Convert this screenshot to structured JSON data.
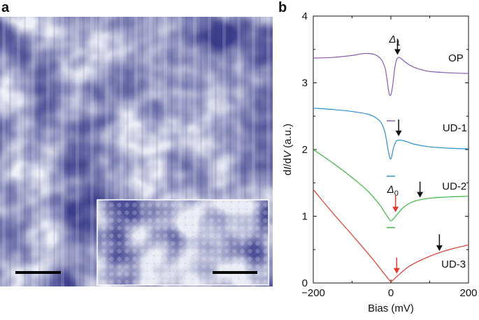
{
  "panels": {
    "a_label": "a",
    "b_label": "b"
  },
  "stm_image": {
    "description_colors": {
      "dark": "#3d3f8c",
      "light": "#f2f3f8"
    }
  },
  "chart_data": {
    "type": "line",
    "xlabel_prefix": "Bias (mV)",
    "ylabel_parts": [
      "d",
      "I",
      "/d",
      "V",
      " (a.u.)"
    ],
    "xlim": [
      -200,
      200
    ],
    "ylim": [
      0,
      4
    ],
    "x_ticks": [
      -200,
      0,
      200
    ],
    "x_tick_labels": [
      "−200",
      "0",
      "200"
    ],
    "y_ticks": [
      0,
      1,
      2,
      3,
      4
    ],
    "y_tick_labels": [
      "0",
      "1",
      "2",
      "3",
      "4"
    ],
    "grid": false,
    "series": [
      {
        "name": "OP",
        "color": "#8a5bb0",
        "x": [
          -200,
          -150,
          -100,
          -80,
          -60,
          -40,
          -25,
          -15,
          -10,
          -5,
          0,
          5,
          10,
          15,
          20,
          25,
          35,
          50,
          70,
          100,
          150,
          200
        ],
        "y": [
          3.37,
          3.38,
          3.41,
          3.43,
          3.44,
          3.42,
          3.35,
          3.22,
          3.05,
          2.85,
          2.82,
          2.98,
          3.22,
          3.35,
          3.38,
          3.37,
          3.32,
          3.26,
          3.21,
          3.17,
          3.15,
          3.14
        ]
      },
      {
        "name": "UD-1",
        "color": "#2a8fd0",
        "x": [
          -200,
          -150,
          -100,
          -60,
          -40,
          -25,
          -15,
          -8,
          -3,
          0,
          3,
          8,
          15,
          25,
          40,
          60,
          100,
          150,
          200
        ],
        "y": [
          2.62,
          2.6,
          2.57,
          2.53,
          2.48,
          2.4,
          2.25,
          2.02,
          1.88,
          1.86,
          1.92,
          2.05,
          2.13,
          2.14,
          2.12,
          2.08,
          2.04,
          2.02,
          2.01
        ]
      },
      {
        "name": "UD-2",
        "color": "#3fb53f",
        "x": [
          -200,
          -150,
          -100,
          -60,
          -30,
          -15,
          -5,
          0,
          5,
          15,
          30,
          50,
          70,
          100,
          150,
          200
        ],
        "y": [
          2.0,
          1.8,
          1.58,
          1.38,
          1.18,
          1.05,
          0.96,
          0.93,
          0.95,
          1.02,
          1.12,
          1.2,
          1.24,
          1.27,
          1.29,
          1.3
        ]
      },
      {
        "name": "UD-3",
        "color": "#e0392f",
        "x": [
          -200,
          -150,
          -100,
          -50,
          -20,
          -5,
          0,
          5,
          20,
          50,
          100,
          150,
          200
        ],
        "y": [
          1.4,
          1.05,
          0.72,
          0.38,
          0.16,
          0.05,
          0.02,
          0.04,
          0.12,
          0.26,
          0.4,
          0.5,
          0.57
        ]
      }
    ],
    "annotations": {
      "delta1": {
        "label": "Δ",
        "sub": "1",
        "x": 17,
        "y": 3.6
      },
      "delta0": {
        "label": "Δ",
        "sub": "0",
        "x": 12,
        "y": 1.35
      },
      "black_arrows": [
        {
          "x": 17,
          "y_top": 3.66,
          "y_bot": 3.42
        },
        {
          "x": 20,
          "y_top": 2.45,
          "y_bot": 2.2
        },
        {
          "x": 75,
          "y_top": 1.52,
          "y_bot": 1.28
        },
        {
          "x": 125,
          "y_top": 0.73,
          "y_bot": 0.48
        }
      ],
      "red_arrows": [
        {
          "x": 12,
          "y_top": 1.32,
          "y_bot": 1.06
        },
        {
          "x": 15,
          "y_top": 0.38,
          "y_bot": 0.14
        }
      ],
      "zero_marks": [
        {
          "x": 0,
          "y": 2.43,
          "color": "#8a5bb0"
        },
        {
          "x": 0,
          "y": 1.6,
          "color": "#2a8fd0"
        },
        {
          "x": 0,
          "y": 0.83,
          "color": "#3fb53f"
        }
      ]
    }
  }
}
